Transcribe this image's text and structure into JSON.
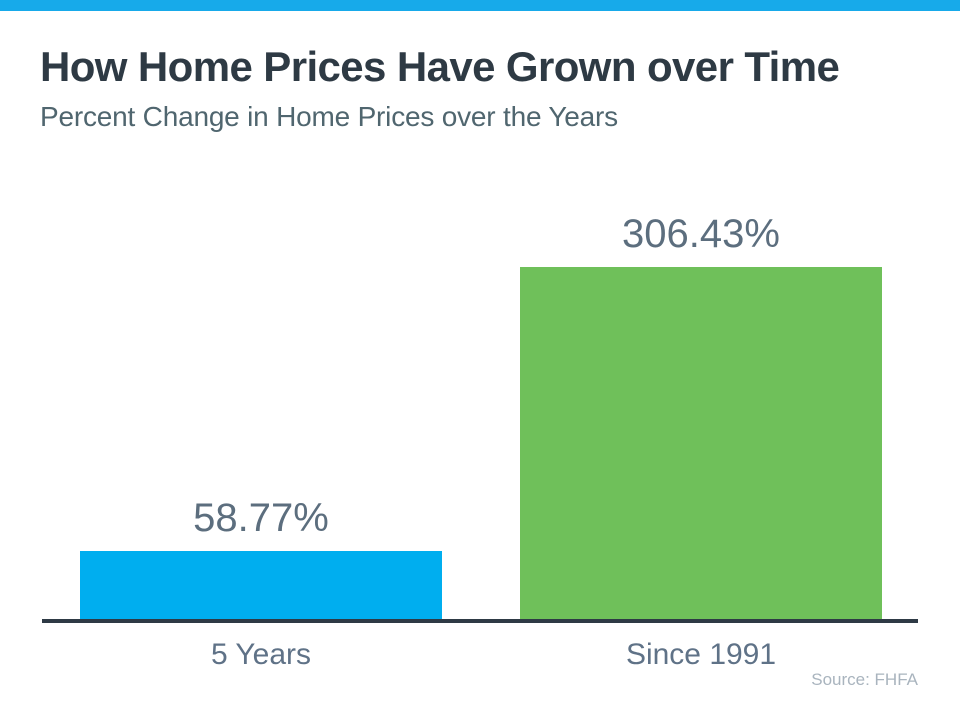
{
  "page": {
    "accent_color": "#17AAEA",
    "background_color": "#FFFFFF"
  },
  "chart_data": {
    "type": "bar",
    "title": "How Home Prices Have Grown over Time",
    "subtitle": "Percent Change in Home Prices over the Years",
    "source": "Source: FHFA",
    "categories": [
      "5 Years",
      "Since 1991"
    ],
    "values": [
      58.77,
      306.43
    ],
    "value_labels": [
      "58.77%",
      "306.43%"
    ],
    "bar_colors": [
      "#00AEEF",
      "#6FC05A"
    ],
    "ylim": [
      0,
      306.43
    ],
    "grid": false,
    "legend": false,
    "axis_line_color": "#2E3A45",
    "title_color": "#2E3A44",
    "subtitle_color": "#50666F",
    "value_label_color": "#5C6E7E",
    "category_label_color": "#5F7287",
    "source_color": "#A9B4BE"
  }
}
